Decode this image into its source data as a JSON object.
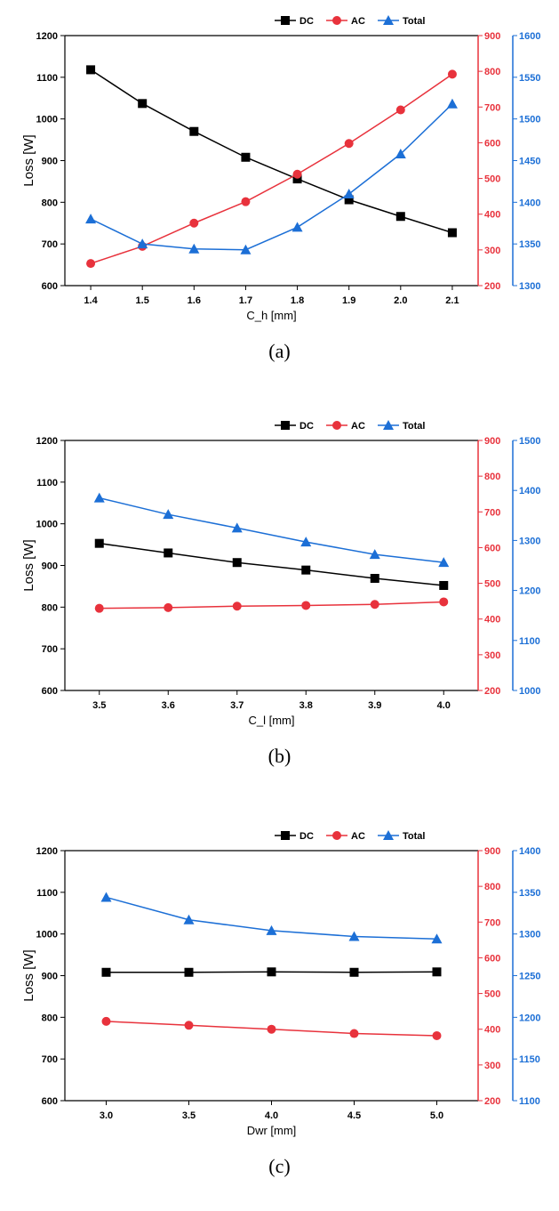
{
  "colors": {
    "dc": "#000000",
    "ac": "#e8323c",
    "total": "#1c6fd6",
    "axis": "#000000"
  },
  "panels": [
    {
      "caption": "(a)",
      "chart_data": {
        "type": "line",
        "xlabel": "C_h [mm]",
        "ylabel": "Loss [W]",
        "x": [
          1.4,
          1.5,
          1.6,
          1.7,
          1.8,
          1.9,
          2.0,
          2.1
        ],
        "x_ticks": [
          "1.4",
          "1.5",
          "1.6",
          "1.7",
          "1.8",
          "1.9",
          "2.0",
          "2.1"
        ],
        "xlim": [
          1.35,
          2.15
        ],
        "y_left": {
          "lim": [
            600,
            1200
          ],
          "ticks": [
            600,
            700,
            800,
            900,
            1000,
            1100,
            1200
          ]
        },
        "y_ac": {
          "lim": [
            200,
            900
          ],
          "ticks": [
            200,
            300,
            400,
            500,
            600,
            700,
            800,
            900
          ]
        },
        "y_total": {
          "lim": [
            1300,
            1600
          ],
          "ticks": [
            1300,
            1350,
            1400,
            1450,
            1500,
            1550,
            1600
          ]
        },
        "series": [
          {
            "name": "DC",
            "axis": "left",
            "marker": "square",
            "values": [
              1118,
              1037,
              970,
              908,
              856,
              806,
              766,
              727
            ]
          },
          {
            "name": "AC",
            "axis": "ac",
            "marker": "circle",
            "values": [
              262,
              310,
              375,
              435,
              512,
              598,
              692,
              792
            ]
          },
          {
            "name": "Total",
            "axis": "total",
            "marker": "triangle",
            "values": [
              1380,
              1350,
              1344,
              1343,
              1370,
              1410,
              1458,
              1518
            ]
          }
        ],
        "legend": "top"
      }
    },
    {
      "caption": "(b)",
      "chart_data": {
        "type": "line",
        "xlabel": "C_l [mm]",
        "ylabel": "Loss [W]",
        "x": [
          3.5,
          3.6,
          3.7,
          3.8,
          3.9,
          4.0
        ],
        "x_ticks": [
          "3.5",
          "3.6",
          "3.7",
          "3.8",
          "3.9",
          "4.0"
        ],
        "xlim": [
          3.45,
          4.05
        ],
        "y_left": {
          "lim": [
            600,
            1200
          ],
          "ticks": [
            600,
            700,
            800,
            900,
            1000,
            1100,
            1200
          ]
        },
        "y_ac": {
          "lim": [
            200,
            900
          ],
          "ticks": [
            200,
            300,
            400,
            500,
            600,
            700,
            800,
            900
          ]
        },
        "y_total": {
          "lim": [
            1000,
            1500
          ],
          "ticks": [
            1000,
            1100,
            1200,
            1300,
            1400,
            1500
          ]
        },
        "series": [
          {
            "name": "DC",
            "axis": "left",
            "marker": "square",
            "values": [
              953,
              930,
              907,
              889,
              869,
              852
            ]
          },
          {
            "name": "AC",
            "axis": "ac",
            "marker": "circle",
            "values": [
              430,
              432,
              436,
              438,
              441,
              448
            ]
          },
          {
            "name": "Total",
            "axis": "total",
            "marker": "triangle",
            "values": [
              1385,
              1352,
              1325,
              1297,
              1272,
              1256
            ]
          }
        ],
        "legend": "top"
      }
    },
    {
      "caption": "(c)",
      "chart_data": {
        "type": "line",
        "xlabel": "Dwr [mm]",
        "ylabel": "Loss [W]",
        "x": [
          3.0,
          3.5,
          4.0,
          4.5,
          5.0
        ],
        "x_ticks": [
          "3.0",
          "3.5",
          "4.0",
          "4.5",
          "5.0"
        ],
        "xlim": [
          2.75,
          5.25
        ],
        "y_left": {
          "lim": [
            600,
            1200
          ],
          "ticks": [
            600,
            700,
            800,
            900,
            1000,
            1100,
            1200
          ]
        },
        "y_ac": {
          "lim": [
            200,
            900
          ],
          "ticks": [
            200,
            300,
            400,
            500,
            600,
            700,
            800,
            900
          ]
        },
        "y_total": {
          "lim": [
            1100,
            1400
          ],
          "ticks": [
            1100,
            1150,
            1200,
            1250,
            1300,
            1350,
            1400
          ]
        },
        "series": [
          {
            "name": "DC",
            "axis": "left",
            "marker": "square",
            "values": [
              908,
              908,
              909,
              908,
              909
            ]
          },
          {
            "name": "AC",
            "axis": "ac",
            "marker": "circle",
            "values": [
              422,
              411,
              400,
              388,
              382
            ]
          },
          {
            "name": "Total",
            "axis": "total",
            "marker": "triangle",
            "values": [
              1344,
              1317,
              1304,
              1297,
              1294
            ]
          }
        ],
        "legend": "top"
      }
    }
  ]
}
